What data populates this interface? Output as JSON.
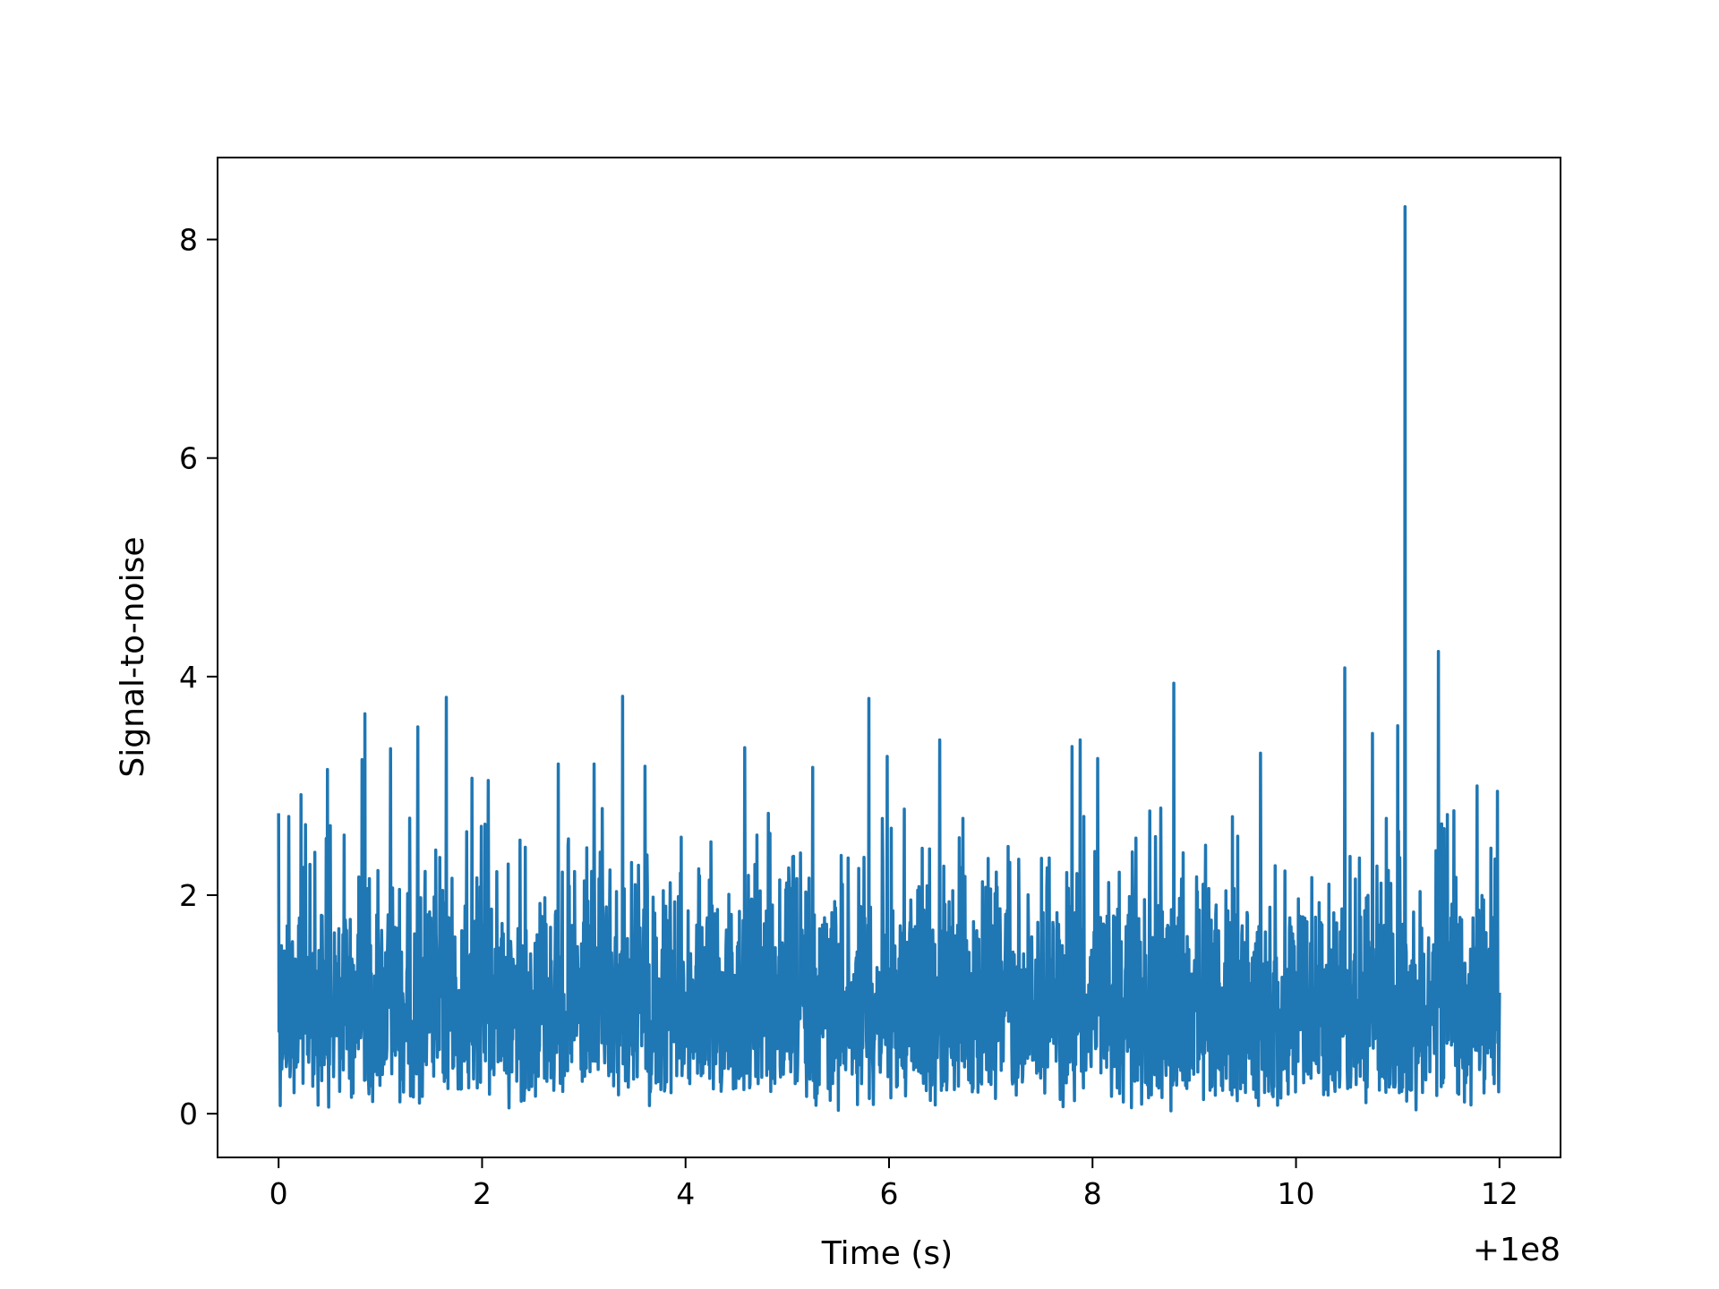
{
  "chart_data": {
    "type": "line",
    "title": "",
    "xlabel": "Time (s)",
    "ylabel": "Signal-to-noise",
    "x_offset_label": "+1e8",
    "xlim": [
      -0.6,
      12.6
    ],
    "ylim": [
      -0.4,
      8.75
    ],
    "x_ticks": [
      0,
      2,
      4,
      6,
      8,
      10,
      12
    ],
    "x_tick_labels": [
      "0",
      "2",
      "4",
      "6",
      "8",
      "10",
      "12"
    ],
    "y_ticks": [
      0,
      2,
      4,
      6,
      8
    ],
    "y_tick_labels": [
      "0",
      "2",
      "4",
      "6",
      "8"
    ],
    "grid": false,
    "legend": "none",
    "line_color": "#1f77b4",
    "series": [
      {
        "x_start": 0,
        "x_end": 12,
        "typical_range": [
          0.1,
          2.8
        ],
        "peaks": [
          [
            0.0,
            2.75
          ],
          [
            0.1,
            2.72
          ],
          [
            0.22,
            2.92
          ],
          [
            0.48,
            3.15
          ],
          [
            0.82,
            3.24
          ],
          [
            0.85,
            3.66
          ],
          [
            1.1,
            3.34
          ],
          [
            1.37,
            3.54
          ],
          [
            1.65,
            3.81
          ],
          [
            1.9,
            3.07
          ],
          [
            2.06,
            3.05
          ],
          [
            2.75,
            3.2
          ],
          [
            3.1,
            3.2
          ],
          [
            3.38,
            3.82
          ],
          [
            3.6,
            3.18
          ],
          [
            4.58,
            3.35
          ],
          [
            5.25,
            3.17
          ],
          [
            5.8,
            3.8
          ],
          [
            5.98,
            3.27
          ],
          [
            6.5,
            3.42
          ],
          [
            7.8,
            3.36
          ],
          [
            7.88,
            3.42
          ],
          [
            8.05,
            3.25
          ],
          [
            8.8,
            3.94
          ],
          [
            9.65,
            3.3
          ],
          [
            10.48,
            4.08
          ],
          [
            10.75,
            3.48
          ],
          [
            11.0,
            3.55
          ],
          [
            11.07,
            8.3
          ],
          [
            11.4,
            4.23
          ],
          [
            11.78,
            3.0
          ],
          [
            11.98,
            2.95
          ]
        ]
      }
    ]
  }
}
